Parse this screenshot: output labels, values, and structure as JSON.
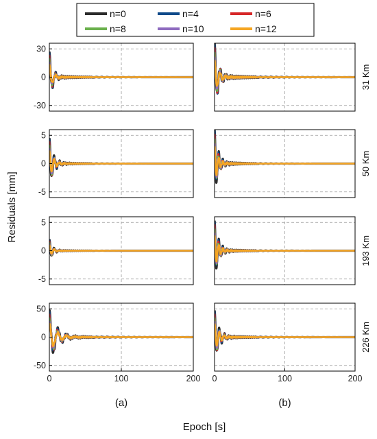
{
  "chart_data": {
    "type": "line",
    "ylabel": "Residuals [mm]",
    "xlabel": "Epoch  [s]",
    "column_labels": [
      "(a)",
      "(b)"
    ],
    "legend": {
      "placement": "top-center",
      "entries": [
        {
          "name": "n=0",
          "color": "#2b2b2b"
        },
        {
          "name": "n=4",
          "color": "#0e4a8a"
        },
        {
          "name": "n=6",
          "color": "#d62728"
        },
        {
          "name": "n=8",
          "color": "#6ab04c"
        },
        {
          "name": "n=10",
          "color": "#8e6bbf"
        },
        {
          "name": "n=12",
          "color": "#f5a623"
        }
      ]
    },
    "grid": true,
    "xlim": [
      0,
      200
    ],
    "xticks": [
      0,
      100,
      200
    ],
    "rows": [
      {
        "label": "31 Km",
        "ylim": [
          -36,
          36
        ],
        "yticks": [
          -30,
          0,
          30
        ],
        "yticklabels": [
          "-30",
          "0",
          "30"
        ],
        "panels": [
          {
            "column": "(a)",
            "transient": {
              "start": 27,
              "period": 9,
              "decay": 4.5,
              "settle": 38
            }
          },
          {
            "column": "(b)",
            "transient": {
              "start": 36,
              "period": 8,
              "decay": 5.5,
              "settle": 45
            }
          }
        ]
      },
      {
        "label": "50 Km",
        "ylim": [
          -6,
          6
        ],
        "yticks": [
          -5,
          0,
          5
        ],
        "yticklabels": [
          "-5",
          "0",
          "5"
        ],
        "panels": [
          {
            "column": "(a)",
            "transient": {
              "start": 4.5,
              "period": 7,
              "decay": 5.5,
              "settle": 30
            }
          },
          {
            "column": "(b)",
            "transient": {
              "start": 6,
              "period": 6,
              "decay": 5,
              "settle": 30
            }
          }
        ]
      },
      {
        "label": "193 Km",
        "ylim": [
          -6,
          6
        ],
        "yticks": [
          -5,
          0,
          5
        ],
        "yticklabels": [
          "-5",
          "0",
          "5"
        ],
        "panels": [
          {
            "column": "(a)",
            "transient": {
              "start": 2,
              "period": 7,
              "decay": 4.5,
              "settle": 25
            }
          },
          {
            "column": "(b)",
            "transient": {
              "start": 5.3,
              "period": 6,
              "decay": 5.5,
              "settle": 30
            }
          }
        ]
      },
      {
        "label": "226 Km",
        "ylim": [
          -60,
          60
        ],
        "yticks": [
          -50,
          0,
          50
        ],
        "yticklabels": [
          "-50",
          "0",
          "50"
        ],
        "panels": [
          {
            "column": "(a)",
            "transient": {
              "start": 47,
              "period": 12,
              "decay": 10,
              "settle": 50
            }
          },
          {
            "column": "(b)",
            "transient": {
              "start": 47,
              "period": 7,
              "decay": 6,
              "settle": 40
            }
          }
        ]
      }
    ]
  }
}
